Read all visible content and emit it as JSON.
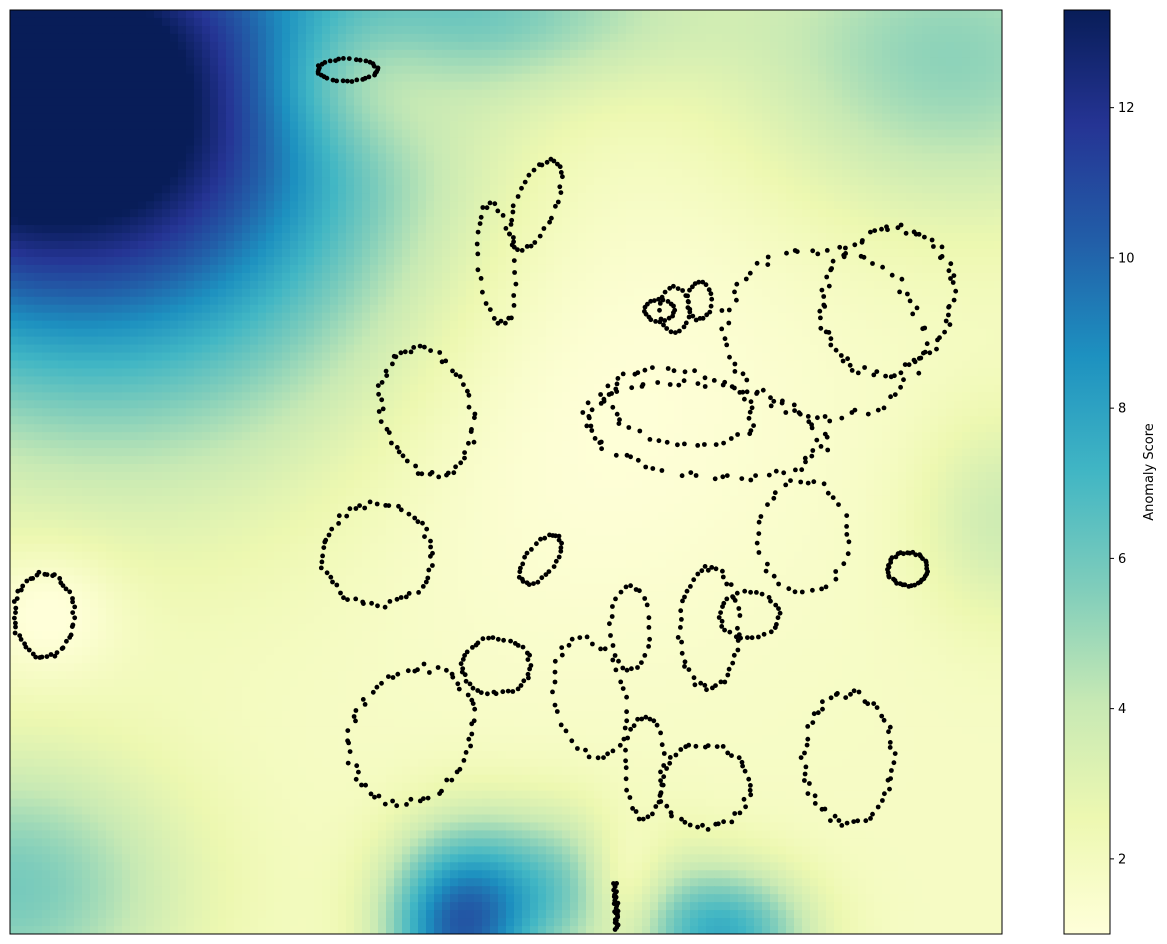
{
  "chart_data": {
    "type": "scatter",
    "title": "",
    "xlabel": "",
    "ylabel": "",
    "xlim": [
      0,
      1
    ],
    "ylim": [
      0,
      1
    ],
    "grid": false,
    "axis_ticks_visible": false,
    "background": {
      "type": "heatmap",
      "colormap": "YlGnBu",
      "description_source": "anomaly score field",
      "value_range": [
        1,
        13.3
      ],
      "blobs": [
        {
          "cx": 0.0,
          "cy": 0.93,
          "sx": 0.22,
          "sy": 0.18,
          "v": 12.3
        },
        {
          "cx": 0.15,
          "cy": 0.76,
          "sx": 0.2,
          "sy": 0.2,
          "v": 4.0
        },
        {
          "cx": 0.5,
          "cy": 1.0,
          "sx": 0.14,
          "sy": 0.06,
          "v": 3.0
        },
        {
          "cx": 0.95,
          "cy": 0.95,
          "sx": 0.15,
          "sy": 0.12,
          "v": 3.5
        },
        {
          "cx": 0.45,
          "cy": 0.0,
          "sx": 0.05,
          "sy": 0.07,
          "v": 7.0
        },
        {
          "cx": 0.54,
          "cy": 0.05,
          "sx": 0.08,
          "sy": 0.06,
          "v": 4.0
        },
        {
          "cx": 0.72,
          "cy": 0.0,
          "sx": 0.06,
          "sy": 0.05,
          "v": 5.5
        },
        {
          "cx": 0.0,
          "cy": 0.05,
          "sx": 0.12,
          "sy": 0.1,
          "v": 4.0
        },
        {
          "cx": 1.0,
          "cy": 0.45,
          "sx": 0.06,
          "sy": 0.08,
          "v": 2.0
        },
        {
          "cx": 0.04,
          "cy": 0.35,
          "sx": 0.05,
          "sy": 0.05,
          "v": -1.4
        },
        {
          "cx": 0.35,
          "cy": 0.93,
          "sx": 0.07,
          "sy": 0.06,
          "v": -2.5
        },
        {
          "cx": 0.62,
          "cy": 0.05,
          "sx": 0.03,
          "sy": 0.05,
          "v": -2.5
        },
        {
          "cx": 0.55,
          "cy": 0.6,
          "sx": 0.18,
          "sy": 0.2,
          "v": -1.0
        }
      ]
    },
    "clusters": [
      {
        "type": "ring",
        "cx": 0.034,
        "cy": 0.345,
        "rx": 0.03,
        "ry": 0.045,
        "n": 50
      },
      {
        "type": "ring",
        "cx": 0.34,
        "cy": 0.935,
        "rx": 0.03,
        "ry": 0.012,
        "n": 35
      },
      {
        "type": "ring",
        "cx": 0.53,
        "cy": 0.79,
        "rx": 0.02,
        "ry": 0.05,
        "n": 35,
        "rot": -0.35
      },
      {
        "type": "ring",
        "cx": 0.49,
        "cy": 0.725,
        "rx": 0.018,
        "ry": 0.065,
        "n": 30,
        "rot": 0.1
      },
      {
        "type": "ring",
        "cx": 0.42,
        "cy": 0.565,
        "rx": 0.045,
        "ry": 0.07,
        "n": 55,
        "rot": 0.25
      },
      {
        "type": "ring",
        "cx": 0.37,
        "cy": 0.41,
        "rx": 0.055,
        "ry": 0.055,
        "n": 55
      },
      {
        "type": "ring",
        "cx": 0.405,
        "cy": 0.215,
        "rx": 0.06,
        "ry": 0.075,
        "n": 60,
        "rot": -0.4
      },
      {
        "type": "ring",
        "cx": 0.49,
        "cy": 0.29,
        "rx": 0.035,
        "ry": 0.03,
        "n": 40
      },
      {
        "type": "ring",
        "cx": 0.535,
        "cy": 0.405,
        "rx": 0.015,
        "ry": 0.03,
        "n": 30,
        "rot": -0.6
      },
      {
        "type": "ring",
        "cx": 0.885,
        "cy": 0.685,
        "rx": 0.065,
        "ry": 0.08,
        "n": 75,
        "rot": -0.3
      },
      {
        "type": "ring",
        "cx": 0.82,
        "cy": 0.65,
        "rx": 0.1,
        "ry": 0.09,
        "n": 65,
        "rot": -0.3
      },
      {
        "type": "ring",
        "cx": 0.7,
        "cy": 0.545,
        "rx": 0.12,
        "ry": 0.05,
        "n": 70,
        "rot": -0.12
      },
      {
        "type": "ring",
        "cx": 0.675,
        "cy": 0.57,
        "rx": 0.075,
        "ry": 0.04,
        "n": 45,
        "rot": -0.2
      },
      {
        "type": "ring",
        "cx": 0.705,
        "cy": 0.33,
        "rx": 0.03,
        "ry": 0.065,
        "n": 45
      },
      {
        "type": "ring",
        "cx": 0.745,
        "cy": 0.345,
        "rx": 0.03,
        "ry": 0.025,
        "n": 30
      },
      {
        "type": "ring",
        "cx": 0.64,
        "cy": 0.18,
        "rx": 0.02,
        "ry": 0.055,
        "n": 30
      },
      {
        "type": "ring",
        "cx": 0.7,
        "cy": 0.16,
        "rx": 0.045,
        "ry": 0.045,
        "n": 45
      },
      {
        "type": "ring",
        "cx": 0.845,
        "cy": 0.19,
        "rx": 0.045,
        "ry": 0.07,
        "n": 55
      },
      {
        "type": "ring",
        "cx": 0.905,
        "cy": 0.395,
        "rx": 0.02,
        "ry": 0.018,
        "n": 40
      },
      {
        "type": "ring",
        "cx": 0.585,
        "cy": 0.255,
        "rx": 0.035,
        "ry": 0.065,
        "n": 35,
        "rot": 0.2
      },
      {
        "type": "ring",
        "cx": 0.625,
        "cy": 0.33,
        "rx": 0.02,
        "ry": 0.045,
        "n": 25
      },
      {
        "type": "ring",
        "cx": 0.8,
        "cy": 0.43,
        "rx": 0.045,
        "ry": 0.06,
        "n": 35
      },
      {
        "type": "ring",
        "cx": 0.67,
        "cy": 0.675,
        "rx": 0.015,
        "ry": 0.025,
        "n": 20
      },
      {
        "type": "ring",
        "cx": 0.655,
        "cy": 0.675,
        "rx": 0.015,
        "ry": 0.012,
        "n": 20
      },
      {
        "type": "ring",
        "cx": 0.695,
        "cy": 0.685,
        "rx": 0.012,
        "ry": 0.02,
        "n": 20
      },
      {
        "type": "line",
        "x0": 0.612,
        "y0": 0.005,
        "x1": 0.61,
        "y1": 0.055,
        "n": 30
      }
    ]
  },
  "colorbar": {
    "label": "Anomaly Score",
    "min": 1,
    "max": 13.3,
    "ticks": [
      {
        "value": 2,
        "label": "2"
      },
      {
        "value": 4,
        "label": "4"
      },
      {
        "value": 6,
        "label": "6"
      },
      {
        "value": 8,
        "label": "8"
      },
      {
        "value": 10,
        "label": "10"
      },
      {
        "value": 12,
        "label": "12"
      }
    ],
    "colors": [
      "#ffffd9",
      "#edf8b1",
      "#c7e9b4",
      "#7fcdbb",
      "#41b6c4",
      "#1d91c0",
      "#225ea8",
      "#253494",
      "#081d58"
    ]
  }
}
